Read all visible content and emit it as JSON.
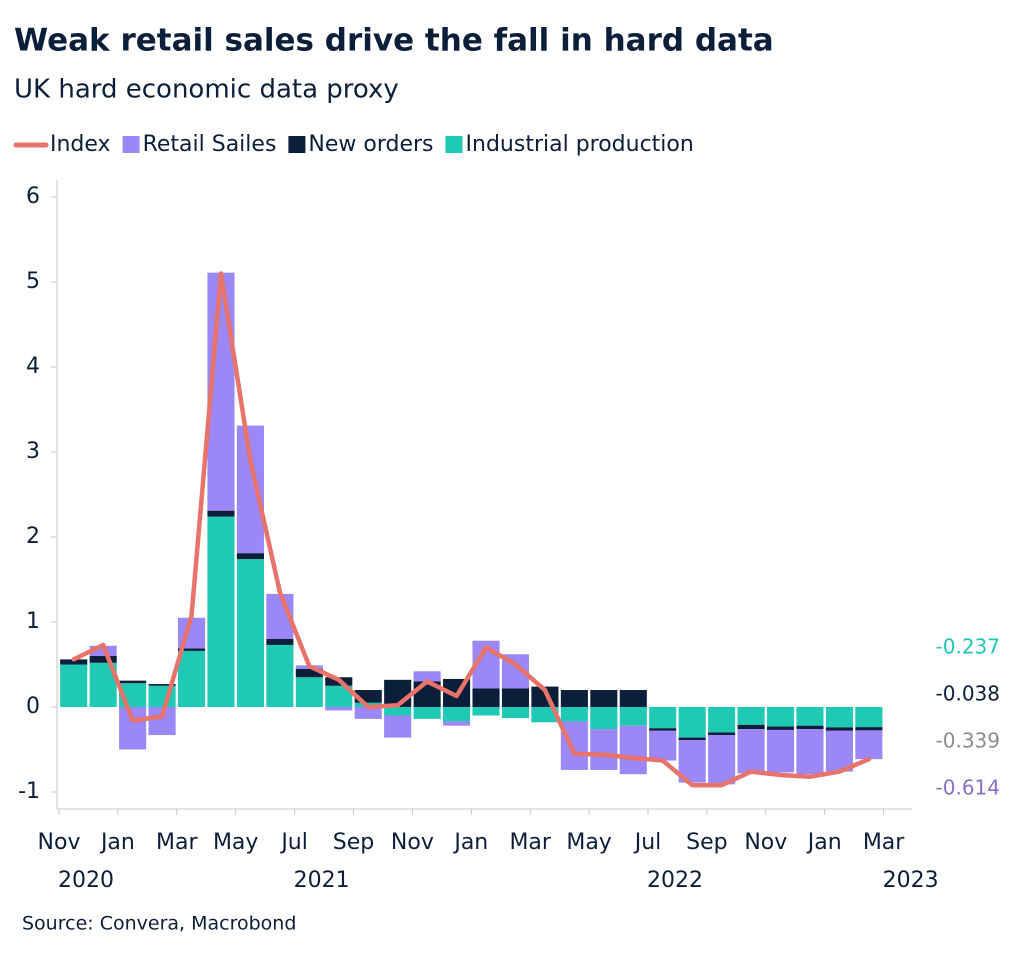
{
  "chart_data": {
    "type": "bar",
    "stacked": true,
    "title": "Weak retail sales drive the fall in hard data",
    "subtitle": "UK hard economic data proxy",
    "source": "Source: Convera, Macrobond",
    "x": [
      "2020-11",
      "2020-12",
      "2021-01",
      "2021-02",
      "2021-03",
      "2021-04",
      "2021-05",
      "2021-06",
      "2021-07",
      "2021-08",
      "2021-09",
      "2021-10",
      "2021-11",
      "2021-12",
      "2022-01",
      "2022-02",
      "2022-03",
      "2022-04",
      "2022-05",
      "2022-06",
      "2022-07",
      "2022-08",
      "2022-09",
      "2022-10",
      "2022-11",
      "2022-12",
      "2023-01",
      "2023-02"
    ],
    "series": [
      {
        "name": "Index",
        "type": "line",
        "color": "#e8736a",
        "values": [
          0.56,
          0.73,
          -0.16,
          -0.11,
          1.07,
          5.1,
          2.9,
          1.35,
          0.48,
          0.32,
          0.0,
          0.02,
          0.3,
          0.13,
          0.7,
          0.5,
          0.2,
          -0.55,
          -0.56,
          -0.6,
          -0.63,
          -0.92,
          -0.92,
          -0.76,
          -0.8,
          -0.82,
          -0.76,
          -0.614
        ]
      },
      {
        "name": "Retail Sailes",
        "type": "bar",
        "color": "#9b87f5",
        "values": [
          0,
          0.12,
          -0.5,
          -0.33,
          0.36,
          2.8,
          1.5,
          0.53,
          0.04,
          -0.04,
          -0.14,
          -0.26,
          0.12,
          -0.05,
          0.56,
          0.4,
          0,
          -0.57,
          -0.48,
          -0.57,
          -0.35,
          -0.5,
          -0.58,
          -0.52,
          -0.5,
          -0.53,
          -0.48,
          -0.339
        ]
      },
      {
        "name": "New orders",
        "type": "bar",
        "color": "#0b1f3a",
        "values": [
          0.06,
          0.08,
          0.03,
          0.02,
          0.03,
          0.07,
          0.07,
          0.07,
          0.1,
          0.1,
          0.15,
          0.32,
          0.3,
          0.33,
          0.22,
          0.22,
          0.24,
          0.2,
          0.2,
          0.2,
          -0.03,
          -0.03,
          -0.03,
          -0.05,
          -0.04,
          -0.04,
          -0.04,
          -0.038
        ]
      },
      {
        "name": "Industrial production",
        "type": "bar",
        "color": "#1fc9b4",
        "values": [
          0.5,
          0.52,
          0.28,
          0.25,
          0.66,
          2.24,
          1.74,
          0.73,
          0.35,
          0.25,
          0.05,
          -0.1,
          -0.14,
          -0.17,
          -0.1,
          -0.13,
          -0.18,
          -0.17,
          -0.26,
          -0.22,
          -0.25,
          -0.36,
          -0.3,
          -0.21,
          -0.23,
          -0.22,
          -0.24,
          -0.237
        ]
      }
    ],
    "ylim": [
      -1.2,
      6.2
    ],
    "yticks": [
      -1,
      0,
      1,
      2,
      3,
      4,
      5,
      6
    ],
    "xticks": [
      {
        "value": "2020-11",
        "label": "Nov"
      },
      {
        "value": "2021-01",
        "label": "Jan"
      },
      {
        "value": "2021-03",
        "label": "Mar"
      },
      {
        "value": "2021-05",
        "label": "May"
      },
      {
        "value": "2021-07",
        "label": "Jul"
      },
      {
        "value": "2021-09",
        "label": "Sep"
      },
      {
        "value": "2021-11",
        "label": "Nov"
      },
      {
        "value": "2022-01",
        "label": "Jan"
      },
      {
        "value": "2022-03",
        "label": "Mar"
      },
      {
        "value": "2022-05",
        "label": "May"
      },
      {
        "value": "2022-07",
        "label": "Jul"
      },
      {
        "value": "2022-09",
        "label": "Sep"
      },
      {
        "value": "2022-11",
        "label": "Nov"
      },
      {
        "value": "2023-01",
        "label": "Jan"
      },
      {
        "value": "2023-03",
        "label": "Mar"
      }
    ],
    "xyears": [
      {
        "value": "2020-11",
        "label": "2020"
      },
      {
        "value": "2021-07",
        "label": "2021"
      },
      {
        "value": "2022-07",
        "label": "2022"
      },
      {
        "value": "2023-03",
        "label": "2023"
      }
    ],
    "end_labels": [
      {
        "text": "-0.237",
        "color": "#1fc9b4"
      },
      {
        "text": "-0.038",
        "color": "#0b1f3a"
      },
      {
        "text": "-0.339",
        "color": "#8c8c8c"
      },
      {
        "text": "-0.614",
        "color": "#8a6fc8"
      }
    ]
  }
}
